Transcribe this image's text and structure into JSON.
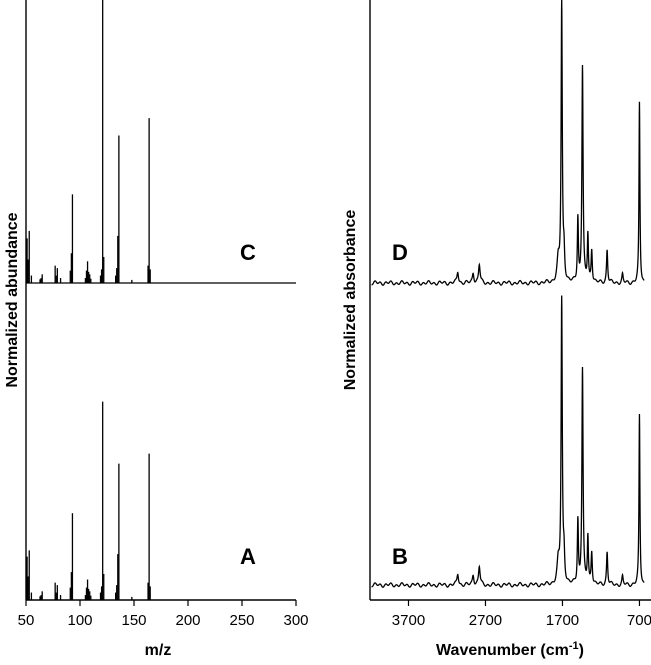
{
  "chart_data": [
    {
      "type": "bar",
      "subtype": "mass-spectrum",
      "panels": [
        "C",
        "A"
      ],
      "xlabel": "m/z",
      "ylabel": "Normalized abundance",
      "xlim": [
        50,
        300
      ],
      "xticks": [
        "50",
        "100",
        "150",
        "200",
        "250",
        "300"
      ],
      "grid": false,
      "series": [
        {
          "name": "C",
          "mz": [
            51,
            52,
            53,
            55,
            63,
            64,
            65,
            77,
            78,
            79,
            82,
            91,
            92,
            93,
            105,
            106,
            107,
            108,
            109,
            110,
            119,
            120,
            121,
            122,
            133,
            134,
            135,
            136,
            148,
            163,
            164,
            165
          ],
          "intensity": [
            0.72,
            0.38,
            0.84,
            0.12,
            0.06,
            0.08,
            0.14,
            0.28,
            0.12,
            0.24,
            0.08,
            0.2,
            0.48,
            1.43,
            0.08,
            0.2,
            0.35,
            0.18,
            0.14,
            0.07,
            0.12,
            0.22,
            4.7,
            0.42,
            0.12,
            0.24,
            0.76,
            2.38,
            0.05,
            0.28,
            2.66,
            0.22
          ]
        },
        {
          "name": "A",
          "mz": [
            51,
            52,
            53,
            55,
            63,
            64,
            65,
            77,
            78,
            79,
            82,
            91,
            92,
            93,
            105,
            106,
            107,
            108,
            109,
            110,
            119,
            120,
            121,
            122,
            133,
            134,
            135,
            136,
            148,
            163,
            164,
            165
          ],
          "intensity": [
            0.7,
            0.38,
            0.8,
            0.12,
            0.06,
            0.08,
            0.14,
            0.28,
            0.12,
            0.24,
            0.08,
            0.2,
            0.45,
            1.4,
            0.08,
            0.2,
            0.33,
            0.18,
            0.14,
            0.07,
            0.12,
            0.22,
            3.2,
            0.42,
            0.12,
            0.24,
            0.74,
            2.2,
            0.05,
            0.28,
            2.36,
            0.22
          ]
        }
      ]
    },
    {
      "type": "line",
      "subtype": "ir-spectrum",
      "panels": [
        "D",
        "B"
      ],
      "xlabel_main": "Wavenumber (cm",
      "xlabel_sup": "-1",
      "xlabel_tail": ")",
      "ylabel": "Normalized absorbance",
      "xlim": [
        4200,
        550
      ],
      "xticks": [
        "3700",
        "2700",
        "1700",
        "700"
      ],
      "grid": false,
      "peaks": [
        {
          "wn": 1710,
          "width": 9,
          "D": 2.7,
          "B": 2.75
        },
        {
          "wn": 1680,
          "width": 10,
          "D": 0.25,
          "B": 0.25
        },
        {
          "wn": 1755,
          "width": 18,
          "D": 0.2,
          "B": 0.2
        },
        {
          "wn": 1500,
          "width": 8,
          "D": 0.62,
          "B": 0.62
        },
        {
          "wn": 1440,
          "width": 9,
          "D": 2.1,
          "B": 2.1
        },
        {
          "wn": 1370,
          "width": 8,
          "D": 0.46,
          "B": 0.46
        },
        {
          "wn": 1320,
          "width": 9,
          "D": 0.32,
          "B": 0.32
        },
        {
          "wn": 1120,
          "width": 9,
          "D": 0.32,
          "B": 0.32
        },
        {
          "wn": 920,
          "width": 9,
          "D": 0.08,
          "B": 0.08
        },
        {
          "wn": 700,
          "width": 7,
          "D": 1.75,
          "B": 1.65
        },
        {
          "wn": 3060,
          "width": 12,
          "D": 0.11,
          "B": 0.11
        },
        {
          "wn": 2860,
          "width": 12,
          "D": 0.1,
          "B": 0.1
        },
        {
          "wn": 2780,
          "width": 12,
          "D": 0.18,
          "B": 0.18
        }
      ]
    }
  ]
}
